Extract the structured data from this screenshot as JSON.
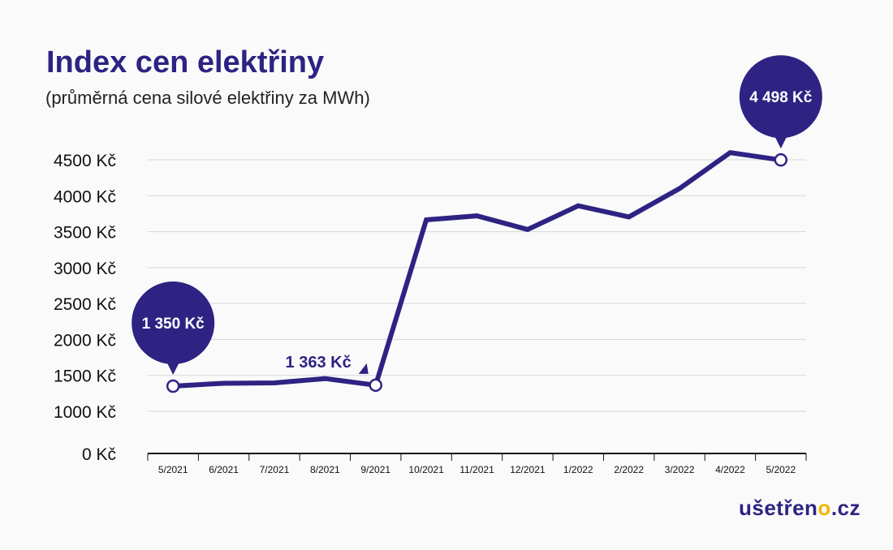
{
  "title": "Index cen elektřiny",
  "subtitle": "(průměrná cena silové elektřiny za MWh)",
  "brand": {
    "prefix": "ušetřen",
    "accent_letter": "o",
    "suffix": ".cz"
  },
  "colors": {
    "primary": "#2e2383",
    "accent": "#f2b705",
    "grid": "#d6d6d6"
  },
  "chart_data": {
    "type": "line",
    "title": "Index cen elektřiny",
    "subtitle": "(průměrná cena silové elektřiny za MWh)",
    "categories": [
      "5/2021",
      "6/2021",
      "7/2021",
      "8/2021",
      "9/2021",
      "10/2021",
      "11/2021",
      "12/2021",
      "1/2022",
      "2/2022",
      "3/2022",
      "4/2022",
      "5/2022"
    ],
    "values": [
      1350,
      1390,
      1395,
      1455,
      1363,
      3665,
      3720,
      3530,
      3860,
      3705,
      4100,
      4600,
      4498
    ],
    "yticks": [
      0,
      1000,
      1500,
      2000,
      2500,
      3000,
      3500,
      4000,
      4500
    ],
    "ytick_labels": [
      "0 Kč",
      "1000 Kč",
      "1500 Kč",
      "2000 Kč",
      "2500 Kč",
      "3000 Kč",
      "3500 Kč",
      "4000 Kč",
      "4500 Kč"
    ],
    "grid": true,
    "annotations": [
      {
        "index": 0,
        "text": "1 350 Kč",
        "style": "bubble"
      },
      {
        "index": 4,
        "text": "1 363 Kč",
        "style": "label"
      },
      {
        "index": 12,
        "text": "4 498 Kč",
        "style": "bubble"
      }
    ]
  }
}
